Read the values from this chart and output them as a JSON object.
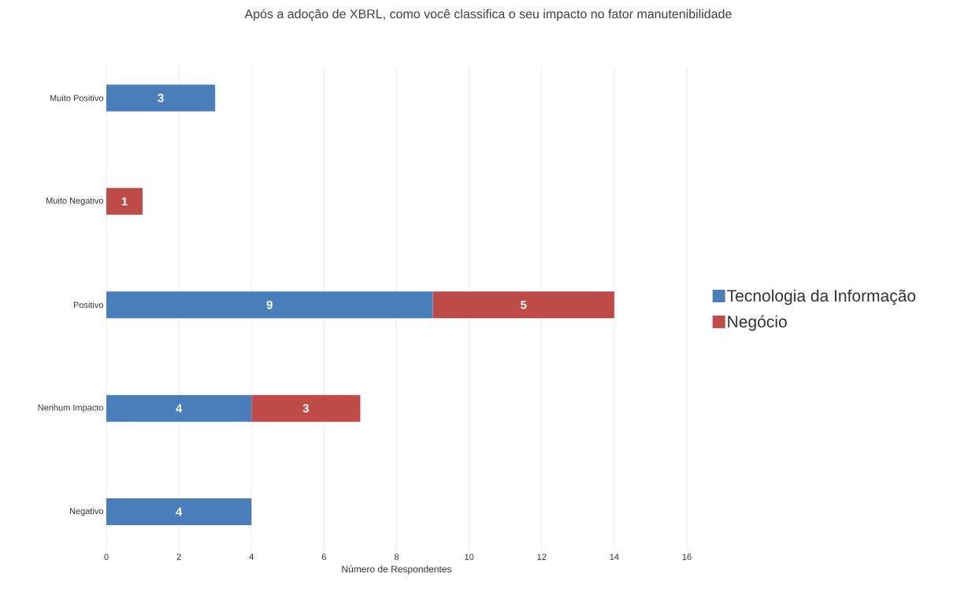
{
  "chart_data": {
    "type": "bar",
    "orientation": "horizontal",
    "stacked": true,
    "title": "Após a adoção de XBRL, como você classifica o seu impacto no fator manutenibilidade",
    "xlabel": "Número de Respondentes",
    "categories": [
      "Muito Positivo",
      "Muito Negativo",
      "Positivo",
      "Nenhum Impacto",
      "Negativo"
    ],
    "series": [
      {
        "name": "Tecnologia da Informação",
        "color": "#4a7ebb",
        "values": [
          3,
          null,
          9,
          4,
          4
        ]
      },
      {
        "name": "Negócio",
        "color": "#be4b48",
        "values": [
          null,
          1,
          5,
          3,
          null
        ]
      }
    ],
    "xlim": [
      0,
      16
    ],
    "xticks": [
      0,
      2,
      4,
      6,
      8,
      10,
      12,
      14,
      16
    ],
    "grid": "x",
    "legend": "right",
    "data_labels": true
  }
}
